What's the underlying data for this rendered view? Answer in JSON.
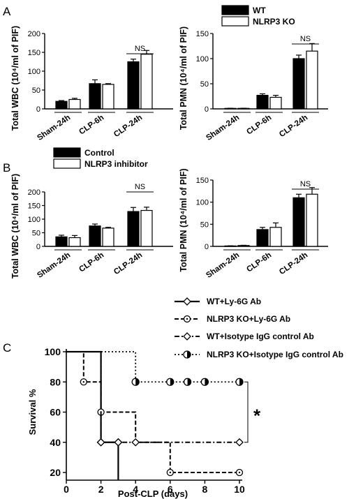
{
  "panels": {
    "A": "A",
    "B": "B",
    "C": "C"
  },
  "colors": {
    "wt": "#000000",
    "ko": "#ffffff",
    "edge": "#000000"
  },
  "chart_data": [
    {
      "id": "A-wbc",
      "type": "bar",
      "ylabel": "Total WBC (10⁴/ml of PIF)",
      "ylim": [
        0,
        200
      ],
      "yticks": [
        0,
        50,
        100,
        150,
        200
      ],
      "categories": [
        "Sham-24h",
        "CLP-6h",
        "CLP-24h"
      ],
      "series": [
        {
          "name": "WT",
          "values": [
            20,
            67,
            125
          ],
          "errors": [
            2,
            10,
            7
          ]
        },
        {
          "name": "NLRP3 KO",
          "values": [
            25,
            65,
            145
          ],
          "errors": [
            3,
            2,
            10
          ]
        }
      ],
      "annotations": [
        {
          "text": "NS",
          "category": 2
        }
      ]
    },
    {
      "id": "A-pmn",
      "type": "bar",
      "ylabel": "Total PMN (10⁴/ml of PIF)",
      "ylim": [
        0,
        150
      ],
      "yticks": [
        0,
        50,
        100,
        150
      ],
      "categories": [
        "Sham-24h",
        "CLP-6h",
        "CLP-24h"
      ],
      "legend": {
        "placement": "top",
        "entries": [
          "WT",
          "NLRP3 KO"
        ]
      },
      "series": [
        {
          "name": "WT",
          "values": [
            1,
            27,
            100
          ],
          "errors": [
            0.3,
            3,
            7
          ]
        },
        {
          "name": "NLRP3 KO",
          "values": [
            1,
            23,
            115
          ],
          "errors": [
            0.3,
            4,
            15
          ]
        }
      ],
      "annotations": [
        {
          "text": "NS",
          "category": 2
        }
      ]
    },
    {
      "id": "B-wbc",
      "type": "bar",
      "ylabel": "Total WBC (10⁴/ml of PIF)",
      "ylim": [
        0,
        200
      ],
      "yticks": [
        0,
        50,
        100,
        150,
        200
      ],
      "categories": [
        "Sham-24h",
        "CLP-6h",
        "CLP-24h"
      ],
      "legend": {
        "placement": "top",
        "entries": [
          "Control",
          "NLRP3 inhibitor"
        ]
      },
      "series": [
        {
          "name": "Control",
          "values": [
            35,
            75,
            128
          ],
          "errors": [
            6,
            7,
            15
          ]
        },
        {
          "name": "NLRP3 inhibitor",
          "values": [
            32,
            67,
            132
          ],
          "errors": [
            8,
            3,
            12
          ]
        }
      ],
      "annotations": [
        {
          "text": "NS",
          "category": 2
        }
      ]
    },
    {
      "id": "B-pmn",
      "type": "bar",
      "ylabel": "Total PMN (10⁴/ml of PIF)",
      "ylim": [
        0,
        150
      ],
      "yticks": [
        0,
        50,
        100,
        150
      ],
      "categories": [
        "Sham-24h",
        "CLP-6h",
        "CLP-24h"
      ],
      "series": [
        {
          "name": "Control",
          "values": [
            1,
            38,
            110
          ],
          "errors": [
            0.3,
            5,
            8
          ]
        },
        {
          "name": "NLRP3 inhibitor",
          "values": [
            2,
            43,
            118
          ],
          "errors": [
            0.5,
            10,
            15
          ]
        }
      ],
      "annotations": [
        {
          "text": "NS",
          "category": 2
        }
      ]
    },
    {
      "id": "C-survival",
      "type": "line",
      "step": true,
      "xlabel": "Post-CLP (days)",
      "ylabel": "Survival %",
      "xlim": [
        0,
        10
      ],
      "ylim": [
        20,
        100
      ],
      "xticks": [
        0,
        2,
        4,
        6,
        8,
        10
      ],
      "yticks": [
        20,
        40,
        60,
        80,
        100
      ],
      "legend": {
        "placement": "top"
      },
      "significance": "*",
      "series": [
        {
          "name": "WT+Ly-6G Ab",
          "style": "solid",
          "marker": "diamond",
          "steps": [
            [
              0,
              100
            ],
            [
              2,
              100
            ],
            [
              2,
              40
            ],
            [
              3,
              40
            ],
            [
              3,
              0
            ]
          ],
          "markers": [
            [
              2,
              40
            ],
            [
              3,
              40
            ]
          ]
        },
        {
          "name": "NLRP3 KO+Ly-6G Ab",
          "style": "dash",
          "marker": "circle-dot",
          "steps": [
            [
              0,
              100
            ],
            [
              1,
              100
            ],
            [
              1,
              80
            ],
            [
              2,
              80
            ],
            [
              2,
              60
            ],
            [
              4,
              60
            ],
            [
              4,
              40
            ],
            [
              6,
              40
            ],
            [
              6,
              20
            ],
            [
              10,
              20
            ]
          ],
          "markers": [
            [
              1,
              80
            ],
            [
              2,
              60
            ],
            [
              6,
              20
            ],
            [
              10,
              20
            ]
          ]
        },
        {
          "name": "WT+Isotype IgG control Ab",
          "style": "dashdot",
          "marker": "diamond",
          "steps": [
            [
              0,
              100
            ],
            [
              2,
              100
            ],
            [
              2,
              40
            ],
            [
              10,
              40
            ]
          ],
          "markers": [
            [
              2,
              40
            ],
            [
              3,
              40
            ],
            [
              4,
              40
            ],
            [
              10,
              40
            ]
          ]
        },
        {
          "name": "NLRP3 KO+Isotype IgG control Ab",
          "style": "dot",
          "marker": "half-circle",
          "steps": [
            [
              0,
              100
            ],
            [
              4,
              100
            ],
            [
              4,
              80
            ],
            [
              10,
              80
            ]
          ],
          "markers": [
            [
              4,
              80
            ],
            [
              6,
              80
            ],
            [
              7,
              80
            ],
            [
              8,
              80
            ],
            [
              10,
              80
            ]
          ]
        }
      ]
    }
  ]
}
